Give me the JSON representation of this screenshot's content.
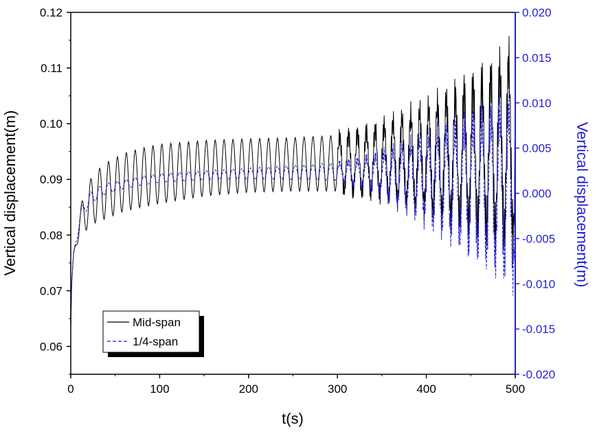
{
  "chart_data": {
    "type": "line",
    "title": "",
    "xlabel": "t(s)",
    "ylabel_left": "Vertical displacement(m)",
    "ylabel_right": "Vertical displacement(m)",
    "xlim": [
      0,
      500
    ],
    "ylim_left": [
      0.055,
      0.12
    ],
    "ylim_right": [
      -0.02,
      0.02
    ],
    "x_ticks": [
      0,
      100,
      200,
      300,
      400,
      500
    ],
    "x_tick_labels": [
      "0",
      "100",
      "200",
      "300",
      "400",
      "500"
    ],
    "y_left_ticks": [
      0.06,
      0.07,
      0.08,
      0.09,
      0.1,
      0.11,
      0.12
    ],
    "y_left_tick_labels": [
      "0.06",
      "0.07",
      "0.08",
      "0.09",
      "0.10",
      "0.11",
      "0.12"
    ],
    "y_right_ticks": [
      -0.02,
      -0.015,
      -0.01,
      -0.005,
      0.0,
      0.005,
      0.01,
      0.015,
      0.02
    ],
    "y_right_tick_labels": [
      "-0.020",
      "-0.015",
      "-0.010",
      "-0.005",
      "0.000",
      "0.005",
      "0.010",
      "0.015",
      "0.020"
    ],
    "grid": false,
    "legend_position": "bottom-left",
    "series": [
      {
        "name": "Mid-span",
        "axis": "left",
        "color": "#000000",
        "style": "solid",
        "period": 10,
        "envelope_t": [
          0,
          1,
          3,
          6,
          10,
          15,
          25,
          40,
          60,
          80,
          100,
          150,
          200,
          250,
          300,
          320,
          340,
          360,
          380,
          400,
          420,
          440,
          460,
          480,
          490,
          500
        ],
        "envelope_mean": [
          0.063,
          0.071,
          0.076,
          0.079,
          0.082,
          0.084,
          0.0865,
          0.088,
          0.0895,
          0.0903,
          0.091,
          0.092,
          0.0925,
          0.0927,
          0.0929,
          0.093,
          0.0932,
          0.0934,
          0.0936,
          0.0938,
          0.094,
          0.0943,
          0.0946,
          0.095,
          0.0955,
          0.096
        ],
        "envelope_amp": [
          0.0,
          0.0,
          0.0005,
          0.0012,
          0.0025,
          0.0035,
          0.0045,
          0.005,
          0.0052,
          0.0053,
          0.0053,
          0.005,
          0.0048,
          0.0048,
          0.005,
          0.0055,
          0.006,
          0.007,
          0.008,
          0.009,
          0.0105,
          0.012,
          0.0135,
          0.015,
          0.016,
          0.017
        ]
      },
      {
        "name": "1/4-span",
        "axis": "right",
        "color": "#1f1fd6",
        "style": "dashed",
        "period": 10,
        "envelope_t": [
          0,
          1,
          3,
          6,
          10,
          15,
          25,
          40,
          60,
          80,
          100,
          150,
          200,
          250,
          300,
          320,
          340,
          360,
          380,
          400,
          420,
          440,
          460,
          480,
          490,
          500
        ],
        "envelope_mean": [
          -0.015,
          -0.01,
          -0.007,
          -0.005,
          -0.003,
          -0.0015,
          -0.0003,
          0.0005,
          0.001,
          0.0014,
          0.0017,
          0.002,
          0.0022,
          0.0023,
          0.0024,
          0.0023,
          0.0022,
          0.002,
          0.0018,
          0.0016,
          0.0014,
          0.0012,
          0.001,
          0.0008,
          0.0006,
          0.0005
        ],
        "envelope_amp": [
          0.0,
          0.0,
          0.0003,
          0.0006,
          0.0008,
          0.0008,
          0.0007,
          0.0006,
          0.0005,
          0.0005,
          0.0005,
          0.0005,
          0.0006,
          0.0008,
          0.001,
          0.0014,
          0.002,
          0.0028,
          0.0036,
          0.0045,
          0.0055,
          0.0065,
          0.0075,
          0.0085,
          0.009,
          0.0095
        ]
      }
    ],
    "legend": {
      "entries": [
        "Mid-span",
        "1/4-span"
      ]
    }
  }
}
